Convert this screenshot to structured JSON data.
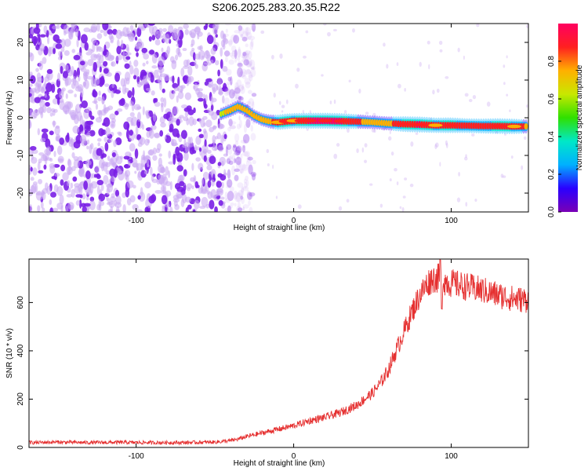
{
  "title": "S206.2025.283.20.35.R22",
  "colors": {
    "blob": "#7a1fe6",
    "blob_light": "#c9a6f2",
    "snr_line": "#e53030",
    "colormap": [
      "#7a00b5",
      "#2a00ff",
      "#00b0ff",
      "#00e8c8",
      "#30e000",
      "#c8e800",
      "#ffb000",
      "#ff2020",
      "#ff0060"
    ]
  },
  "chart_data": [
    {
      "type": "heatmap",
      "name": "spectrogram",
      "xlabel": "Height of straight line (km)",
      "ylabel": "Frequency (Hz)",
      "xlim": [
        -168,
        149
      ],
      "ylim": [
        -25,
        25
      ],
      "xticks": [
        -100,
        0,
        100
      ],
      "yticks": [
        -20,
        -10,
        0,
        10,
        20
      ],
      "xtick_labels": [
        "-100",
        "0",
        "100"
      ],
      "ytick_labels": [
        "-20",
        "-10",
        "0",
        "10",
        "20"
      ],
      "noise_region_km": [
        -168,
        -35
      ],
      "signal_track": {
        "x": [
          -46,
          -40,
          -35,
          -30,
          -25,
          -20,
          -15,
          -10,
          -5,
          0,
          5,
          10,
          20,
          30,
          40,
          50,
          60,
          70,
          80,
          90,
          100,
          110,
          120,
          130,
          140,
          149
        ],
        "freq": [
          1,
          2,
          3,
          2,
          0.5,
          -0.5,
          -1,
          -1.2,
          -1,
          -0.8,
          -0.8,
          -0.8,
          -0.8,
          -0.9,
          -1,
          -1.2,
          -1.5,
          -1.7,
          -1.8,
          -2,
          -2,
          -2.1,
          -2.2,
          -2.2,
          -2.3,
          -2.3
        ],
        "amplitude": [
          0.4,
          0.5,
          0.5,
          0.45,
          0.45,
          0.5,
          0.6,
          0.8,
          0.85,
          0.8,
          0.85,
          0.9,
          0.9,
          0.9,
          0.7,
          0.55,
          0.6,
          0.85,
          0.9,
          0.8,
          0.85,
          0.7,
          0.75,
          0.85,
          0.8,
          0.6
        ]
      },
      "colorbar": {
        "label": "Normalized spectral amplitude",
        "range": [
          0,
          1
        ],
        "ticks": [
          0.0,
          0.2,
          0.4,
          0.6,
          0.8
        ],
        "tick_labels": [
          "0.0",
          "0.2",
          "0.4",
          "0.6",
          "0.8"
        ]
      }
    },
    {
      "type": "line",
      "name": "snr",
      "xlabel": "Height of straight line (km)",
      "ylabel": "SNR (10 * v/v)",
      "xlim": [
        -168,
        149
      ],
      "ylim": [
        0,
        780
      ],
      "xticks": [
        -100,
        0,
        100
      ],
      "yticks": [
        0,
        200,
        400,
        600
      ],
      "xtick_labels": [
        "-100",
        "0",
        "100"
      ],
      "ytick_labels": [
        "0",
        "200",
        "400",
        "600"
      ],
      "series": [
        {
          "name": "SNR",
          "x": [
            -168,
            -150,
            -130,
            -110,
            -90,
            -70,
            -50,
            -40,
            -35,
            -30,
            -20,
            -10,
            0,
            10,
            20,
            30,
            40,
            50,
            55,
            60,
            65,
            70,
            75,
            80,
            85,
            88,
            92,
            95,
            100,
            110,
            120,
            130,
            140,
            149
          ],
          "y": [
            20,
            22,
            20,
            21,
            20,
            20,
            22,
            28,
            35,
            45,
            60,
            75,
            90,
            110,
            125,
            145,
            175,
            225,
            265,
            320,
            400,
            480,
            560,
            630,
            680,
            700,
            700,
            690,
            680,
            665,
            650,
            630,
            615,
            610
          ]
        }
      ]
    }
  ]
}
